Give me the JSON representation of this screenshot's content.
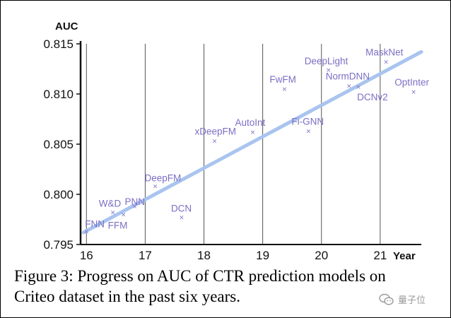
{
  "chart_data": {
    "type": "scatter",
    "title": "",
    "xlabel": "Year",
    "ylabel": "AUC",
    "xlim": [
      15.9,
      21.7
    ],
    "ylim": [
      0.795,
      0.815
    ],
    "x_ticks": [
      16,
      17,
      18,
      19,
      20,
      21
    ],
    "x_tick_labels": [
      "16",
      "17",
      "18",
      "19",
      "20",
      "21"
    ],
    "y_ticks": [
      0.795,
      0.8,
      0.805,
      0.81,
      0.815
    ],
    "y_tick_labels": [
      "0.795",
      "0.800",
      "0.805",
      "0.810",
      "0.815"
    ],
    "grid": "vertical lines at each year",
    "marker_color": "#7b6fc4",
    "trend_color": "#a9c4ef",
    "trend_line": {
      "x": [
        15.95,
        21.7
      ],
      "y": [
        0.7962,
        0.8142
      ]
    },
    "points": [
      {
        "label": "FNN",
        "x": 16.0,
        "y": 0.7963
      },
      {
        "label": "W&D",
        "x": 16.45,
        "y": 0.7982
      },
      {
        "label": "FFM",
        "x": 16.63,
        "y": 0.798
      },
      {
        "label": "PNN",
        "x": 16.82,
        "y": 0.7988
      },
      {
        "label": "DeepFM",
        "x": 17.17,
        "y": 0.8008
      },
      {
        "label": "DCN",
        "x": 17.62,
        "y": 0.7977
      },
      {
        "label": "xDeepFM",
        "x": 18.18,
        "y": 0.8053
      },
      {
        "label": "AutoInt",
        "x": 18.83,
        "y": 0.8062
      },
      {
        "label": "FwFM",
        "x": 19.37,
        "y": 0.8105
      },
      {
        "label": "Fi-GNN",
        "x": 19.78,
        "y": 0.8063
      },
      {
        "label": "DeepLight",
        "x": 20.12,
        "y": 0.8124
      },
      {
        "label": "NormDNN",
        "x": 20.47,
        "y": 0.8108
      },
      {
        "label": "DCNv2",
        "x": 20.63,
        "y": 0.8107
      },
      {
        "label": "MaskNet",
        "x": 21.1,
        "y": 0.8132
      },
      {
        "label": "OptInter",
        "x": 21.57,
        "y": 0.8102
      }
    ]
  },
  "caption": {
    "line1": "Figure 3: Progress on AUC of CTR prediction models on",
    "line2": "Criteo dataset in the past six years."
  },
  "watermark": {
    "text": "量子位"
  }
}
